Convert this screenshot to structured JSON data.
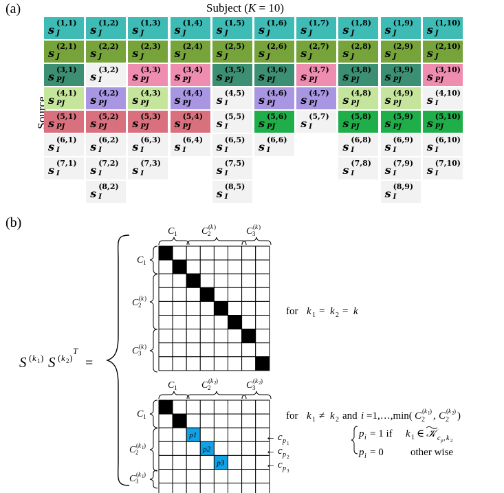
{
  "panel_a": {
    "label": "(a)",
    "subject_title": "Subject (K = 10)",
    "source_label": "Source",
    "colors": {
      "J1": "#3dbbb4",
      "J2": "#76a33a",
      "G3": "#3c8f73",
      "P3": "#ef8db0",
      "L4": "#c6e59c",
      "V4": "#a896e3",
      "R5": "#d9707e",
      "G5": "#1fae4a",
      "I": "#f2f2f2"
    },
    "rows": [
      [
        "J1",
        "J1",
        "J1",
        "J1",
        "J1",
        "J1",
        "J1",
        "J1",
        "J1",
        "J1"
      ],
      [
        "J2",
        "J2",
        "J2",
        "J2",
        "J2",
        "J2",
        "J2",
        "J2",
        "J2",
        "J2"
      ],
      [
        "G3",
        "I",
        "P3",
        "P3",
        "G3",
        "G3",
        "P3",
        "G3",
        "G3",
        "P3"
      ],
      [
        "L4",
        "V4",
        "L4",
        "V4",
        "I",
        "V4",
        "V4",
        "L4",
        "L4",
        "I"
      ],
      [
        "R5",
        "R5",
        "R5",
        "R5",
        "I",
        "G5",
        "I",
        "G5",
        "G5",
        "G5"
      ],
      [
        "I",
        "I",
        "I",
        "I",
        "I",
        "I",
        "",
        "I",
        "I",
        "I"
      ],
      [
        "I",
        "I",
        "I",
        "",
        "I",
        "",
        "",
        "I",
        "I",
        "I"
      ],
      [
        "",
        "I",
        "",
        "",
        "I",
        "",
        "",
        "",
        "I",
        ""
      ]
    ],
    "subs": [
      [
        "J",
        "J",
        "J",
        "J",
        "J",
        "J",
        "J",
        "J",
        "J",
        "J"
      ],
      [
        "J",
        "J",
        "J",
        "J",
        "J",
        "J",
        "J",
        "J",
        "J",
        "J"
      ],
      [
        "PJ",
        "I",
        "PJ",
        "PJ",
        "PJ",
        "PJ",
        "PJ",
        "PJ",
        "PJ",
        "PJ"
      ],
      [
        "PJ",
        "PJ",
        "PJ",
        "PJ",
        "I",
        "PJ",
        "PJ",
        "PJ",
        "PJ",
        "I"
      ],
      [
        "PJ",
        "PJ",
        "PJ",
        "PJ",
        "I",
        "PJ",
        "I",
        "PJ",
        "PJ",
        "PJ"
      ],
      [
        "I",
        "I",
        "I",
        "I",
        "I",
        "I",
        "",
        "I",
        "I",
        "I"
      ],
      [
        "I",
        "I",
        "I",
        "",
        "I",
        "",
        "",
        "I",
        "I",
        "I"
      ],
      [
        "",
        "I",
        "",
        "",
        "I",
        "",
        "",
        "",
        "I",
        ""
      ]
    ]
  },
  "panel_b": {
    "label": "(b)",
    "lhs": "S(k1) S(k2)T =",
    "top": {
      "col_groups": [
        "C1",
        "C2(k)",
        "C3(k)"
      ],
      "row_groups": [
        "C1",
        "C2(k)",
        "C3(k)"
      ],
      "condition": "for k1 = k2 = k"
    },
    "bottom": {
      "col_groups": [
        "C1",
        "C2(k2)",
        "C3(k2)"
      ],
      "row_groups": [
        "C1",
        "C2(k1)",
        "C3(k1)"
      ],
      "condition": "for k1 ≠ k2 and i =1,…,min(C2(k1), C2(k2))",
      "case1": "pi = 1  if  k1 ∈ 𝒦cpi,k2",
      "case2": "pi = 0        other wise",
      "cells": [
        "p1",
        "p2",
        "p3"
      ],
      "arrows": [
        "← cp1",
        "← cp2",
        "← cp3"
      ]
    },
    "black": "#000000",
    "blue": "#10a2e4"
  }
}
